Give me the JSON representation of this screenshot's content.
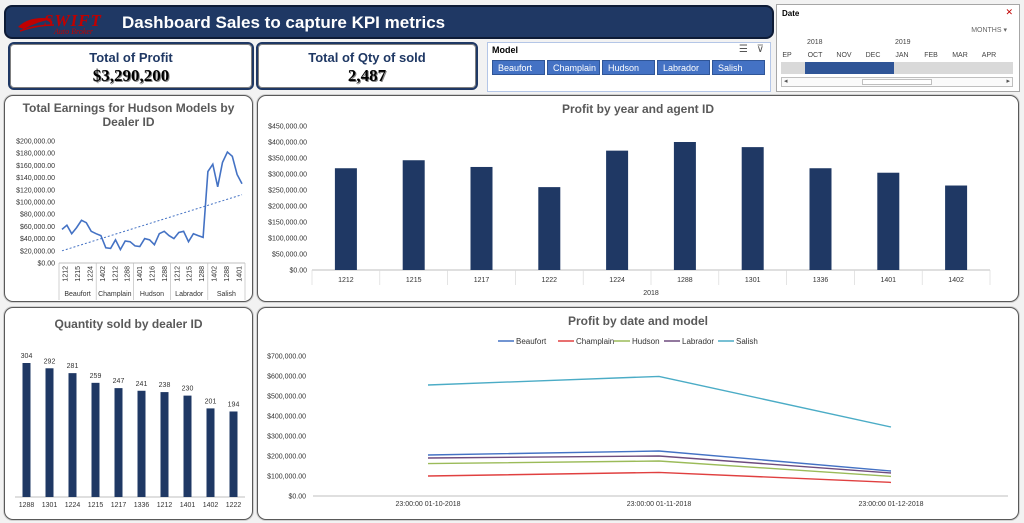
{
  "header": {
    "logo": {
      "name": "SWIFT",
      "subtitle": "Auto Broker"
    },
    "title": "Dashboard Sales to capture KPI metrics"
  },
  "kpis": [
    {
      "label": "Total of Profit",
      "value": "$3,290,200"
    },
    {
      "label": "Total of Qty of sold",
      "value": "2,487"
    }
  ],
  "model_slicer": {
    "title": "Model",
    "items": [
      "Beaufort",
      "Champlain",
      "Hudson",
      "Labrador",
      "Salish"
    ]
  },
  "date_timeline": {
    "title": "Date",
    "level": "MONTHS",
    "years": [
      "2018",
      "2019"
    ],
    "months": [
      "EP",
      "OCT",
      "NOV",
      "DEC",
      "JAN",
      "FEB",
      "MAR",
      "APR"
    ]
  },
  "colors": {
    "navy": "#1f3864",
    "title_gray": "#595959"
  },
  "chart_data": [
    {
      "type": "line",
      "title": "Total Earnings for Hudson Models by Dealer ID",
      "ylim": [
        0,
        200000
      ],
      "yticks": [
        "$200,000.00",
        "$180,000.00",
        "$160,000.00",
        "$140,000.00",
        "$120,000.00",
        "$100,000.00",
        "$80,000.00",
        "$60,000.00",
        "$40,000.00",
        "$20,000.00",
        "$0.00"
      ],
      "groups": [
        {
          "name": "Beaufort",
          "ids": [
            "1212",
            "1215",
            "1224"
          ]
        },
        {
          "name": "Champlain",
          "ids": [
            "1402",
            "1212",
            "1288"
          ]
        },
        {
          "name": "Hudson",
          "ids": [
            "1401",
            "1216",
            "1288"
          ]
        },
        {
          "name": "Labrador",
          "ids": [
            "1212",
            "1215",
            "1288"
          ]
        },
        {
          "name": "Salish",
          "ids": [
            "1402",
            "1288",
            "1401"
          ]
        }
      ],
      "values": [
        55000,
        62000,
        48000,
        58000,
        70000,
        66000,
        52000,
        48000,
        45000,
        25000,
        24000,
        38000,
        22000,
        36000,
        35000,
        28000,
        27000,
        40000,
        38000,
        30000,
        48000,
        52000,
        45000,
        40000,
        50000,
        52000,
        35000,
        48000,
        45000,
        42000,
        150000,
        162000,
        125000,
        165000,
        182000,
        175000,
        145000,
        130000
      ],
      "trendline": [
        20000,
        112000
      ]
    },
    {
      "type": "bar",
      "title": "Profit by year and agent ID",
      "xlabel": "2018",
      "ylim": [
        0,
        450000
      ],
      "yticks": [
        "$450,000.00",
        "$400,000.00",
        "$350,000.00",
        "$300,000.00",
        "$250,000.00",
        "$200,000.00",
        "$150,000.00",
        "$100,000.00",
        "$50,000.00",
        "$0.00"
      ],
      "categories": [
        "1212",
        "1215",
        "1217",
        "1222",
        "1224",
        "1288",
        "1301",
        "1336",
        "1401",
        "1402"
      ],
      "values": [
        318000,
        343000,
        322000,
        259000,
        373000,
        400000,
        384000,
        318000,
        304000,
        264000
      ]
    },
    {
      "type": "bar",
      "title": "Quantity sold by dealer ID",
      "categories": [
        "1288",
        "1301",
        "1224",
        "1215",
        "1217",
        "1336",
        "1212",
        "1401",
        "1402",
        "1222"
      ],
      "values": [
        304,
        292,
        281,
        259,
        247,
        241,
        238,
        230,
        201,
        194
      ]
    },
    {
      "type": "line",
      "title": "Profit by date and model",
      "ylim": [
        0,
        700000
      ],
      "yticks": [
        "$700,000.00",
        "$600,000.00",
        "$500,000.00",
        "$400,000.00",
        "$300,000.00",
        "$200,000.00",
        "$100,000.00",
        "$0.00"
      ],
      "x": [
        "23:00:00 01-10-2018",
        "23:00:00 01-11-2018",
        "23:00:00 01-12-2018"
      ],
      "series": [
        {
          "name": "Beaufort",
          "color": "#4472c4",
          "values": [
            205000,
            225000,
            125000
          ]
        },
        {
          "name": "Champlain",
          "color": "#e04040",
          "values": [
            100000,
            118000,
            68000
          ]
        },
        {
          "name": "Hudson",
          "color": "#9bbb59",
          "values": [
            162000,
            175000,
            98000
          ]
        },
        {
          "name": "Labrador",
          "color": "#6e4c7e",
          "values": [
            190000,
            200000,
            115000
          ]
        },
        {
          "name": "Salish",
          "color": "#4bacc6",
          "values": [
            555000,
            598000,
            345000
          ]
        }
      ]
    }
  ]
}
